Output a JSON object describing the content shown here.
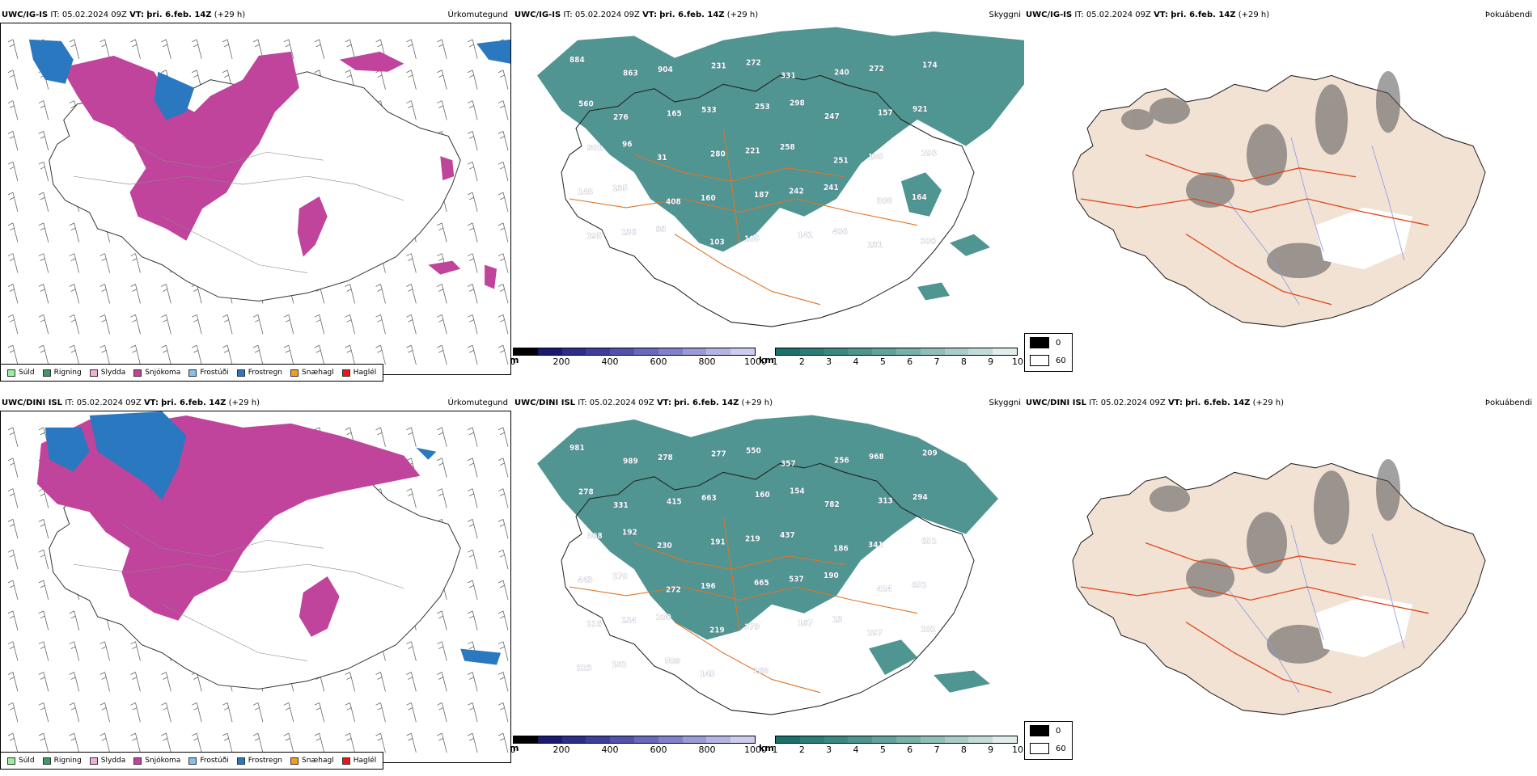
{
  "rows": [
    {
      "model": "UWC/IG-IS",
      "it_label": "IT:",
      "it_value": "05.02.2024 09Z",
      "vt_label": "VT:",
      "vt_value": "þri. 6.feb. 14Z",
      "lead": "(+29 h)",
      "cloud_labels": [
        "884",
        "863",
        "904",
        "231",
        "272",
        "331",
        "240",
        "272",
        "174",
        "560",
        "276",
        "165",
        "533",
        "253",
        "298",
        "247",
        "157",
        "921",
        "901",
        "96",
        "31",
        "280",
        "221",
        "258",
        "251",
        "185",
        "298",
        "148",
        "135",
        "408",
        "160",
        "187",
        "242",
        "241",
        "308",
        "164",
        "195",
        "136",
        "93",
        "103",
        "105",
        "141",
        "406",
        "131",
        "306"
      ]
    },
    {
      "model": "UWC/DINI ISL",
      "it_label": "IT:",
      "it_value": "05.02.2024 09Z",
      "vt_label": "VT:",
      "vt_value": "þri. 6.feb. 14Z",
      "lead": "(+29 h)",
      "cloud_labels": [
        "981",
        "989",
        "278",
        "277",
        "550",
        "357",
        "256",
        "968",
        "209",
        "278",
        "331",
        "415",
        "663",
        "160",
        "154",
        "782",
        "313",
        "294",
        "368",
        "192",
        "230",
        "191",
        "219",
        "437",
        "186",
        "341",
        "652",
        "443",
        "170",
        "272",
        "196",
        "665",
        "537",
        "190",
        "424",
        "652",
        "116",
        "154",
        "200",
        "219",
        "379",
        "167",
        "13",
        "297",
        "102",
        "323",
        "182",
        "509",
        "145",
        "168"
      ]
    }
  ],
  "panel_titles": {
    "precip_type": "Úrkomutegund",
    "visibility": "Skyggni",
    "fog": "Þokuábendi"
  },
  "precip_legend": [
    {
      "label": "Súld",
      "color": "#9af09a"
    },
    {
      "label": "Rigning",
      "color": "#3c9a66"
    },
    {
      "label": "Slydda",
      "color": "#f0b0d8"
    },
    {
      "label": "Snjókoma",
      "color": "#c0449c"
    },
    {
      "label": "Frostúði",
      "color": "#86bff0"
    },
    {
      "label": "Frostregn",
      "color": "#2a78c0"
    },
    {
      "label": "Snæhagl",
      "color": "#f0a020"
    },
    {
      "label": "Haglél",
      "color": "#e81818"
    }
  ],
  "vis_m_bar": {
    "unit": "m",
    "ticks": [
      "0",
      "200",
      "400",
      "600",
      "800",
      "1000"
    ],
    "colors": [
      "#000000",
      "#1a1a6e",
      "#2d2d8a",
      "#3e3e9c",
      "#5252ac",
      "#6868bc",
      "#8080cc",
      "#9a9ad8",
      "#b4b4e4",
      "#ccccee"
    ]
  },
  "vis_km_bar": {
    "unit": "km",
    "ticks": [
      "1",
      "2",
      "3",
      "4",
      "5",
      "6",
      "7",
      "8",
      "9",
      "10"
    ],
    "colors": [
      "#1a706a",
      "#2a7c76",
      "#3b8882",
      "#4d948e",
      "#62a29c",
      "#78b0aa",
      "#90beb9",
      "#a8ccc8",
      "#c2dbd8",
      "#e0edec"
    ]
  },
  "fog_legend": [
    {
      "label": "0",
      "color": "#000000"
    },
    {
      "label": "60",
      "color": "#ffffff"
    }
  ],
  "colors": {
    "snow": "#c0449c",
    "freezing_rain": "#2a78c0",
    "visibility_teal": "#3d8a86",
    "land_fog": "#f2e2d4",
    "roads": "#e07428",
    "roads_red": "#e04418",
    "rivers": "#8898e8"
  }
}
